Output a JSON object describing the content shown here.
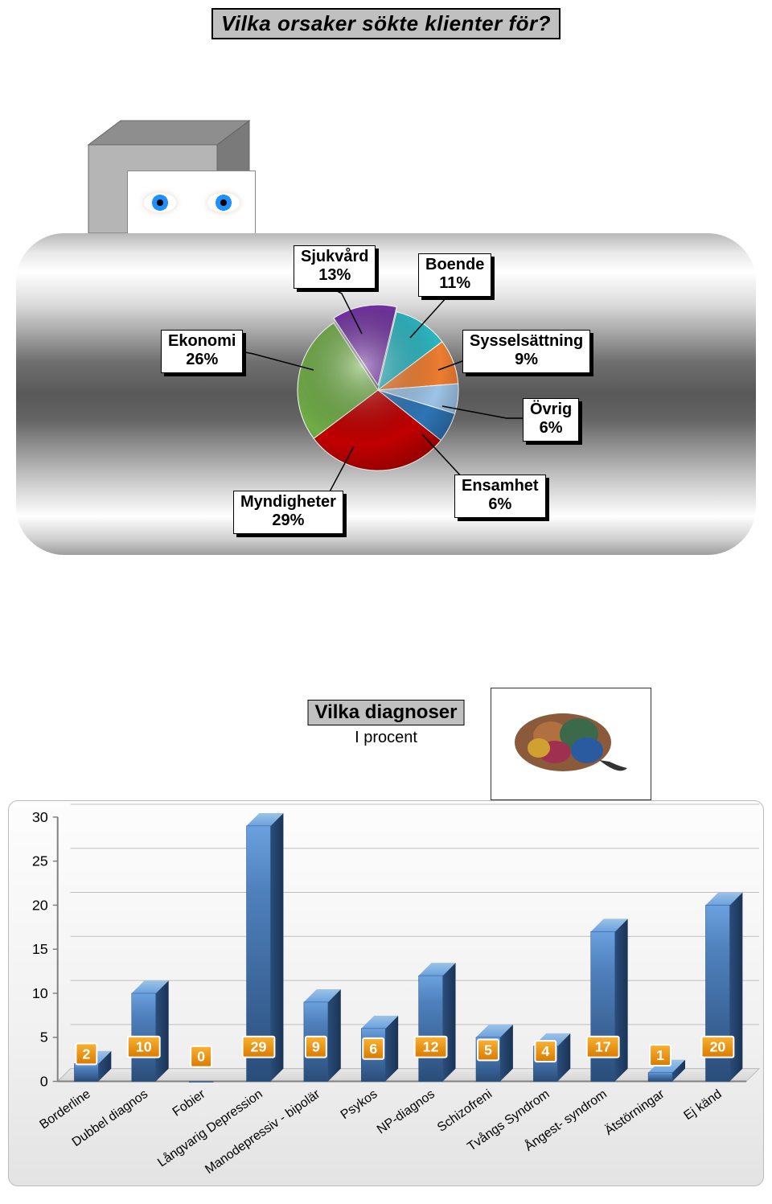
{
  "title": "Vilka orsaker sökte klienter för?",
  "pie_chart": {
    "type": "pie",
    "slices": [
      {
        "label": "Sjukvård",
        "percent": 13,
        "color": "#7030a0"
      },
      {
        "label": "Boende",
        "percent": 11,
        "color": "#2cb5c0"
      },
      {
        "label": "Sysselsättning",
        "percent": 9,
        "color": "#ed7d31"
      },
      {
        "label": "Övrig",
        "percent": 6,
        "color": "#9cc3e6"
      },
      {
        "label": "Ensamhet",
        "percent": 6,
        "color": "#2e75b6"
      },
      {
        "label": "Myndigheter",
        "percent": 29,
        "color": "#c00000"
      },
      {
        "label": "Ekonomi",
        "percent": 26,
        "color": "#70ad47"
      }
    ],
    "background": "metallic-silver",
    "label_bg": "#ffffff",
    "label_border": "#000000",
    "label_shadow": "#000000",
    "label_fontsize": 20
  },
  "bar_chart": {
    "type": "bar",
    "title": "Vilka diagnoser",
    "subtitle": "I procent",
    "ylim": [
      0,
      30
    ],
    "ytick_step": 5,
    "categories": [
      "Borderline",
      "Dubbel diagnos",
      "Fobier",
      "Långvarig Depression",
      "Manodepressiv - bipolär",
      "Psykos",
      "NP-diagnos",
      "Schizofreni",
      "Tvångs Syndrom",
      "Ångest- syndrom",
      "Ätstörningar",
      "Ej känd"
    ],
    "values": [
      2,
      10,
      0,
      29,
      9,
      6,
      12,
      5,
      4,
      17,
      1,
      20
    ],
    "bar_color_top": "#4f81bd",
    "bar_color_bottom": "#2a4d7a",
    "badge_color_top": "#f6a01a",
    "badge_color_bottom": "#d97a00",
    "badge_text_color": "#ffffff",
    "grid_color": "#bfbfbf",
    "axis_color": "#808080",
    "panel_bg_top": "#fdfdfd",
    "panel_bg_bottom": "#e3e3e3",
    "tick_fontsize": 18,
    "cat_fontsize": 16,
    "xlabel_rotation": -35
  },
  "brain_icon": {
    "name": "brain-icon"
  }
}
